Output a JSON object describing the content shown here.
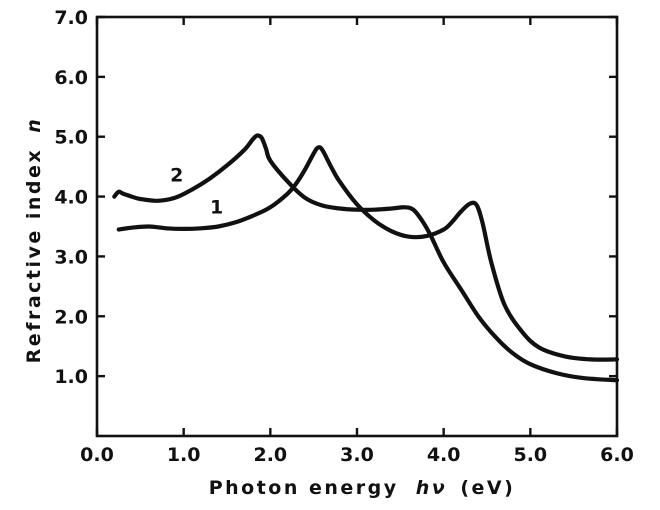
{
  "chart_data": {
    "type": "line",
    "title": "",
    "xlabel": "Photon energy",
    "xlabel_symbol": "hν",
    "xlabel_unit": "(eV)",
    "ylabel": "Refractive index",
    "ylabel_symbol": "n",
    "xlim": [
      0.0,
      6.0
    ],
    "ylim": [
      0.0,
      7.0
    ],
    "xticks": [
      "0.0",
      "1.0",
      "2.0",
      "3.0",
      "4.0",
      "5.0",
      "6.0"
    ],
    "yticks": [
      "1.0",
      "2.0",
      "3.0",
      "4.0",
      "5.0",
      "6.0",
      "7.0"
    ],
    "ytick_values": [
      1.0,
      2.0,
      3.0,
      4.0,
      5.0,
      6.0,
      7.0
    ],
    "xtick_values": [
      0.0,
      1.0,
      2.0,
      3.0,
      4.0,
      5.0,
      6.0
    ],
    "grid": false,
    "series": [
      {
        "name": "1",
        "x": [
          0.25,
          0.4,
          0.6,
          0.8,
          1.0,
          1.2,
          1.4,
          1.6,
          1.8,
          2.0,
          2.2,
          2.3,
          2.4,
          2.5,
          2.55,
          2.6,
          2.7,
          2.8,
          3.0,
          3.2,
          3.4,
          3.6,
          3.8,
          4.0,
          4.1,
          4.2,
          4.3,
          4.38,
          4.45,
          4.55,
          4.7,
          4.9,
          5.1,
          5.4,
          5.7,
          6.0
        ],
        "y": [
          3.45,
          3.48,
          3.5,
          3.47,
          3.46,
          3.47,
          3.5,
          3.57,
          3.68,
          3.82,
          4.05,
          4.22,
          4.45,
          4.72,
          4.82,
          4.78,
          4.5,
          4.25,
          3.87,
          3.6,
          3.42,
          3.33,
          3.34,
          3.45,
          3.58,
          3.75,
          3.88,
          3.86,
          3.55,
          2.9,
          2.2,
          1.75,
          1.48,
          1.33,
          1.28,
          1.28
        ]
      },
      {
        "name": "2",
        "x": [
          0.2,
          0.25,
          0.3,
          0.4,
          0.5,
          0.7,
          0.9,
          1.1,
          1.3,
          1.5,
          1.7,
          1.8,
          1.85,
          1.9,
          1.95,
          2.0,
          2.2,
          2.4,
          2.6,
          2.8,
          3.0,
          3.2,
          3.4,
          3.55,
          3.65,
          3.75,
          3.85,
          4.0,
          4.2,
          4.4,
          4.6,
          4.8,
          5.0,
          5.3,
          5.6,
          6.0
        ],
        "y": [
          4.0,
          4.08,
          4.05,
          4.0,
          3.96,
          3.93,
          3.98,
          4.12,
          4.3,
          4.52,
          4.78,
          4.96,
          5.02,
          4.98,
          4.8,
          4.6,
          4.25,
          3.98,
          3.85,
          3.8,
          3.78,
          3.78,
          3.8,
          3.82,
          3.78,
          3.6,
          3.35,
          2.9,
          2.45,
          2.0,
          1.65,
          1.38,
          1.2,
          1.05,
          0.97,
          0.93
        ]
      }
    ],
    "annotations": [
      {
        "text": "1",
        "x": 1.38,
        "y": 3.72
      },
      {
        "text": "2",
        "x": 0.92,
        "y": 4.25
      }
    ]
  }
}
